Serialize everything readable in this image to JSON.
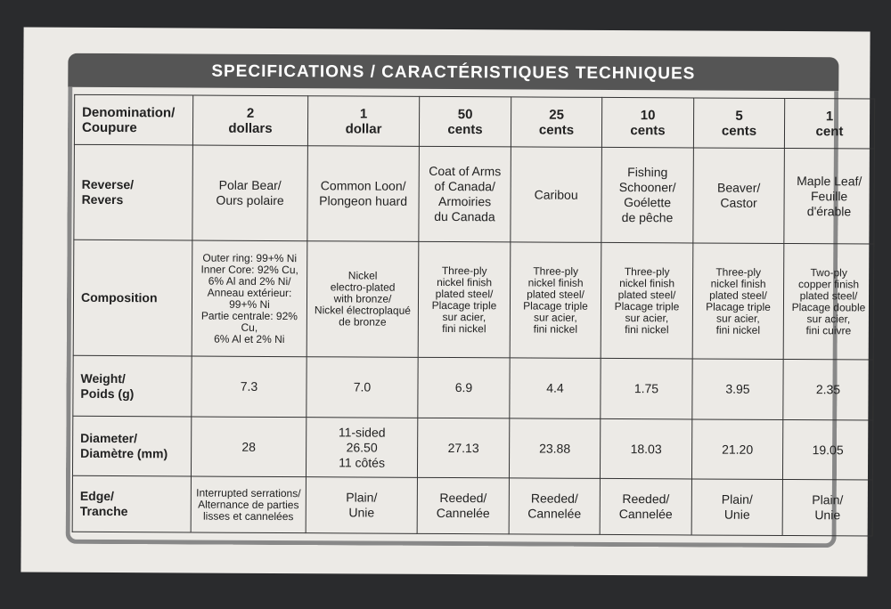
{
  "header": {
    "title": "SPECIFICATIONS / CARACTÉRISTIQUES TECHNIQUES"
  },
  "table": {
    "columns": [
      "Denomination/\nCoupure",
      "2\ndollars",
      "1\ndollar",
      "50\ncents",
      "25\ncents",
      "10\ncents",
      "5\ncents",
      "1\ncent"
    ],
    "rows": [
      {
        "label": "Reverse/\nRevers",
        "cells": [
          "Polar Bear/\nOurs polaire",
          "Common Loon/\nPlongeon huard",
          "Coat of Arms\nof Canada/\nArmoiries\ndu Canada",
          "Caribou",
          "Fishing\nSchooner/\nGoélette\nde pêche",
          "Beaver/\nCastor",
          "Maple Leaf/\nFeuille\nd'érable"
        ]
      },
      {
        "label": "Composition",
        "cells": [
          "Outer ring: 99+% Ni\nInner Core: 92% Cu,\n6% Al and 2% Ni/\nAnneau extérieur:\n99+% Ni\nPartie centrale: 92% Cu,\n6% Al et 2% Ni",
          "Nickel\nelectro-plated\nwith bronze/\nNickel électroplaqué\nde bronze",
          "Three-ply\nnickel finish\nplated steel/\nPlacage triple\nsur acier,\nfini nickel",
          "Three-ply\nnickel finish\nplated steel/\nPlacage triple\nsur acier,\nfini nickel",
          "Three-ply\nnickel finish\nplated steel/\nPlacage triple\nsur acier,\nfini nickel",
          "Three-ply\nnickel finish\nplated steel/\nPlacage triple\nsur acier,\nfini nickel",
          "Two-ply\ncopper finish\nplated steel/\nPlacage double\nsur acier,\nfini cuivre"
        ]
      },
      {
        "label": "Weight/\nPoids (g)",
        "cells": [
          "7.3",
          "7.0",
          "6.9",
          "4.4",
          "1.75",
          "3.95",
          "2.35"
        ]
      },
      {
        "label": "Diameter/\nDiamètre (mm)",
        "cells": [
          "28",
          "11-sided\n26.50\n11 côtés",
          "27.13",
          "23.88",
          "18.03",
          "21.20",
          "19.05"
        ]
      },
      {
        "label": "Edge/\nTranche",
        "cells": [
          "Interrupted serrations/\nAlternance de parties\nlisses et cannelées",
          "Plain/\nUnie",
          "Reeded/\nCannelée",
          "Reeded/\nCannelée",
          "Reeded/\nCannelée",
          "Plain/\nUnie",
          "Plain/\nUnie"
        ]
      }
    ]
  }
}
